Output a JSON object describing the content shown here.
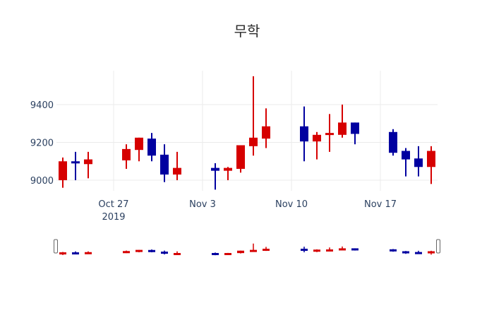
{
  "chart_data": {
    "type": "candlestick",
    "title": "무학",
    "xlabel": "",
    "ylabel": "",
    "ylim": [
      8920,
      9560
    ],
    "grid": true,
    "legend": "none",
    "colors": {
      "increasing": "#d60000",
      "decreasing": "#0000a0"
    },
    "y_ticks": [
      9000,
      9200,
      9400
    ],
    "x_ticks": [
      {
        "date": "2019-10-27",
        "label": "Oct 27",
        "sublabel": "2019"
      },
      {
        "date": "2019-11-03",
        "label": "Nov 3",
        "sublabel": ""
      },
      {
        "date": "2019-11-10",
        "label": "Nov 10",
        "sublabel": ""
      },
      {
        "date": "2019-11-17",
        "label": "Nov 17",
        "sublabel": ""
      }
    ],
    "x_range": [
      "2019-10-22T12:00",
      "2019-11-21T12:00"
    ],
    "candles": [
      {
        "date": "2019-10-23",
        "open": 9000,
        "high": 9120,
        "low": 8960,
        "close": 9100
      },
      {
        "date": "2019-10-24",
        "open": 9100,
        "high": 9150,
        "low": 9000,
        "close": 9090
      },
      {
        "date": "2019-10-25",
        "open": 9085,
        "high": 9150,
        "low": 9010,
        "close": 9110
      },
      {
        "date": "2019-10-28",
        "open": 9105,
        "high": 9190,
        "low": 9060,
        "close": 9165
      },
      {
        "date": "2019-10-29",
        "open": 9160,
        "high": 9225,
        "low": 9100,
        "close": 9225
      },
      {
        "date": "2019-10-30",
        "open": 9220,
        "high": 9250,
        "low": 9100,
        "close": 9130
      },
      {
        "date": "2019-10-31",
        "open": 9135,
        "high": 9190,
        "low": 8990,
        "close": 9030
      },
      {
        "date": "2019-11-01",
        "open": 9030,
        "high": 9150,
        "low": 9000,
        "close": 9065
      },
      {
        "date": "2019-11-04",
        "open": 9065,
        "high": 9090,
        "low": 8950,
        "close": 9050
      },
      {
        "date": "2019-11-05",
        "open": 9050,
        "high": 9070,
        "low": 9000,
        "close": 9065
      },
      {
        "date": "2019-11-06",
        "open": 9060,
        "high": 9185,
        "low": 9040,
        "close": 9185
      },
      {
        "date": "2019-11-07",
        "open": 9180,
        "high": 9550,
        "low": 9130,
        "close": 9225
      },
      {
        "date": "2019-11-08",
        "open": 9220,
        "high": 9380,
        "low": 9170,
        "close": 9285
      },
      {
        "date": "2019-11-11",
        "open": 9285,
        "high": 9390,
        "low": 9100,
        "close": 9205
      },
      {
        "date": "2019-11-12",
        "open": 9205,
        "high": 9255,
        "low": 9110,
        "close": 9240
      },
      {
        "date": "2019-11-13",
        "open": 9240,
        "high": 9350,
        "low": 9150,
        "close": 9250
      },
      {
        "date": "2019-11-14",
        "open": 9240,
        "high": 9400,
        "low": 9225,
        "close": 9305
      },
      {
        "date": "2019-11-15",
        "open": 9305,
        "high": 9305,
        "low": 9190,
        "close": 9245
      },
      {
        "date": "2019-11-18",
        "open": 9255,
        "high": 9270,
        "low": 9130,
        "close": 9145
      },
      {
        "date": "2019-11-19",
        "open": 9155,
        "high": 9170,
        "low": 9020,
        "close": 9110
      },
      {
        "date": "2019-11-20",
        "open": 9115,
        "high": 9180,
        "low": 9020,
        "close": 9070
      },
      {
        "date": "2019-11-21",
        "open": 9070,
        "high": 9180,
        "low": 8980,
        "close": 9155
      }
    ],
    "rangeslider": {
      "visible": true
    }
  }
}
